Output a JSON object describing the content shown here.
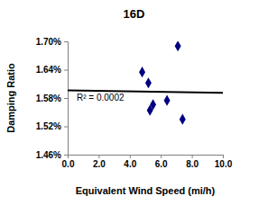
{
  "chart_data": {
    "type": "scatter",
    "title": "16D",
    "x_label": "Equivalent Wind Speed (mi/h)",
    "y_label": "Damping Ratio",
    "series": [
      {
        "type": "scatter",
        "marker": "diamond",
        "color": "#000080",
        "x": [
          4.8,
          5.2,
          5.5,
          5.3,
          6.4,
          7.1,
          7.4
        ],
        "values": [
          1.635,
          1.612,
          1.566,
          1.554,
          1.575,
          1.69,
          1.535
        ]
      },
      {
        "type": "line",
        "line_style": "solid",
        "color": "#000000",
        "x": [
          0,
          10
        ],
        "values": [
          1.596,
          1.591
        ]
      }
    ],
    "annotations": [
      "R² = 0.0002"
    ],
    "xlim": [
      0,
      10
    ],
    "xticks": [
      {
        "value": 0,
        "label": "0.0"
      },
      {
        "value": 2,
        "label": "2.0"
      },
      {
        "value": 4,
        "label": "4.0"
      },
      {
        "value": 6,
        "label": "6.0"
      },
      {
        "value": 8,
        "label": "8.0"
      },
      {
        "value": 10,
        "label": "10.0"
      }
    ],
    "ylim": [
      1.46,
      1.7
    ],
    "yticks": [
      {
        "value": 1.46,
        "label": "1.46%"
      },
      {
        "value": 1.52,
        "label": "1.52%"
      },
      {
        "value": 1.58,
        "label": "1.58%"
      },
      {
        "value": 1.64,
        "label": "1.64%"
      },
      {
        "value": 1.7,
        "label": "1.70%"
      }
    ],
    "grid": false
  }
}
